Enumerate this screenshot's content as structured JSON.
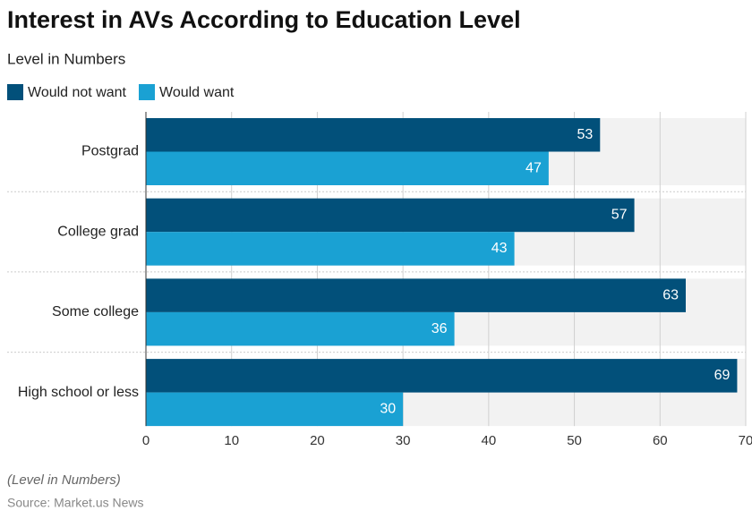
{
  "chart_data": {
    "type": "hbar",
    "title": "Interest in AVs According to Education Level",
    "subtitle": "Level in Numbers",
    "categories": [
      "Postgrad",
      "College grad",
      "Some college",
      "High school or less"
    ],
    "series": [
      {
        "name": "Would not want",
        "color": "#02507a",
        "values": [
          53,
          57,
          63,
          69
        ]
      },
      {
        "name": "Would want",
        "color": "#1aa1d3",
        "values": [
          47,
          43,
          36,
          30
        ]
      }
    ],
    "xlim": [
      0,
      70
    ],
    "xticks": [
      0,
      10,
      20,
      30,
      40,
      50,
      60,
      70
    ],
    "grid": true,
    "note": "(Level in Numbers)",
    "source": "Source: Market.us News"
  }
}
